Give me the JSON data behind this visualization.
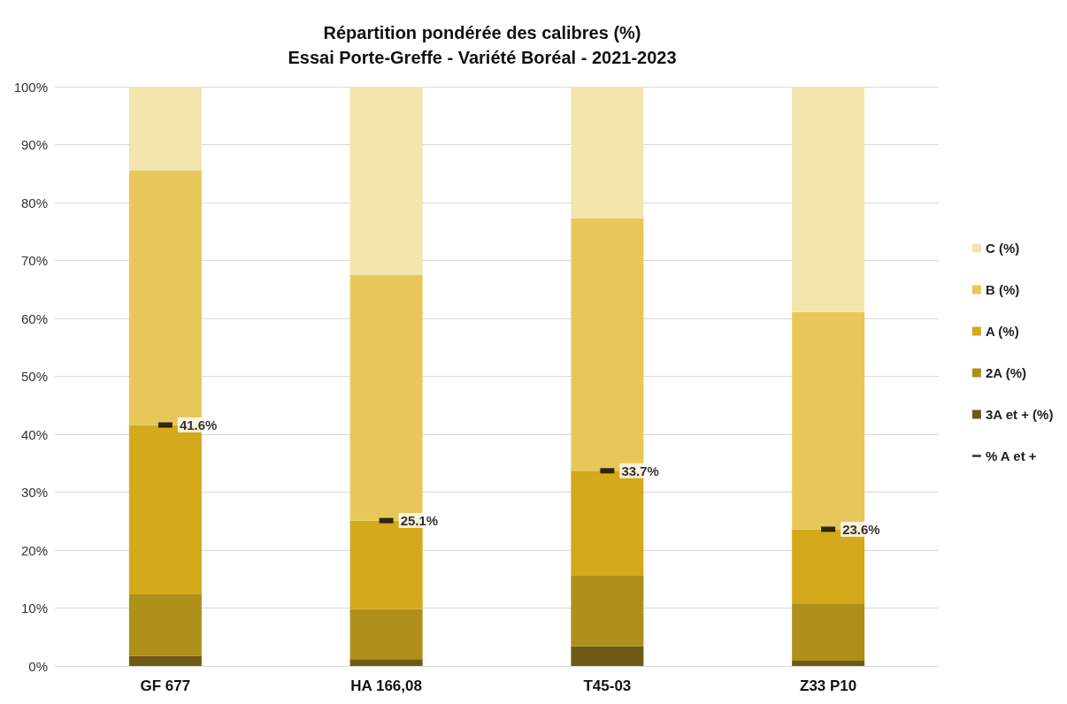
{
  "chart_data": {
    "type": "bar",
    "title": "Répartition pondérée des calibres (%)",
    "subtitle": "Essai Porte-Greffe - Variété Boréal - 2021-2023",
    "categories": [
      "GF 677",
      "HA 166,08",
      "T45-03",
      "Z33 P10"
    ],
    "stacked": true,
    "legend": "right",
    "grid": "y",
    "ylim": [
      0,
      100
    ],
    "yticks": [
      {
        "value": 0,
        "label": "0%"
      },
      {
        "value": 10,
        "label": "10%"
      },
      {
        "value": 20,
        "label": "20%"
      },
      {
        "value": 30,
        "label": "30%"
      },
      {
        "value": 40,
        "label": "40%"
      },
      {
        "value": 50,
        "label": "50%"
      },
      {
        "value": 60,
        "label": "60%"
      },
      {
        "value": 70,
        "label": "70%"
      },
      {
        "value": 80,
        "label": "80%"
      },
      {
        "value": 90,
        "label": "90%"
      },
      {
        "value": 100,
        "label": "100%"
      }
    ],
    "series": [
      {
        "name": "3A et + (%)",
        "color": "#6e5a14",
        "values": [
          1.7,
          1.2,
          3.4,
          0.9
        ]
      },
      {
        "name": "2A (%)",
        "color": "#ad8f1a",
        "values": [
          10.8,
          8.6,
          12.3,
          9.9
        ]
      },
      {
        "name": "A (%)",
        "color": "#d4a91b",
        "values": [
          29.1,
          15.3,
          18.0,
          12.8
        ]
      },
      {
        "name": "B (%)",
        "color": "#e8c75a",
        "values": [
          43.9,
          42.4,
          43.6,
          37.5
        ]
      },
      {
        "name": "C (%)",
        "color": "#f3e5ab",
        "values": [
          14.5,
          32.5,
          22.7,
          38.9
        ]
      },
      {
        "name": "% A et +",
        "type": "scatter",
        "color": "#000000",
        "x": [
          "GF 677",
          "HA 166,08",
          "T45-03",
          "Z33 P10"
        ],
        "values": [
          41.6,
          25.1,
          33.7,
          23.6
        ],
        "value_labels": [
          "41.6%",
          "25.1%",
          "33.7%",
          "23.6%"
        ]
      }
    ]
  }
}
